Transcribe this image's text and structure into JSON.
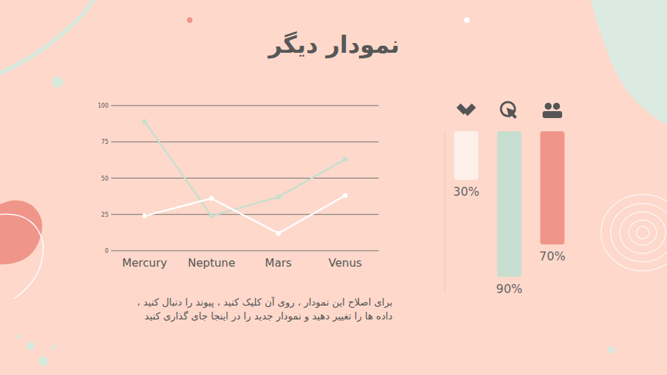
{
  "title": "نمودار دیگر",
  "caption": [
    "برای اصلاح این نمودار ، روی آن کلیک کنید ، پیوند را دنبال کنید ،",
    "داده ها را تغییر دهید و نمودار جدید را در اینجا جای گذاری کنید"
  ],
  "chart_data": [
    {
      "type": "line",
      "categories": [
        "Mercury",
        "Neptune",
        "Mars",
        "Venus"
      ],
      "series": [
        {
          "color": "#c5dfcf",
          "values": [
            89,
            24,
            37,
            63
          ],
          "marker": "circle"
        },
        {
          "color": "#ffffff",
          "values": [
            24,
            36,
            12,
            38
          ],
          "marker": "circle"
        }
      ],
      "ylim": [
        0,
        100
      ],
      "yticks": [
        0,
        25,
        50,
        75,
        100
      ],
      "grid": true
    },
    {
      "type": "bar",
      "categories": [
        null,
        null,
        null
      ],
      "values": [
        30,
        90,
        70
      ],
      "value_labels": [
        "30%",
        "90%",
        "70%"
      ],
      "colors": [
        "#fdf0eb",
        "#c6dfd0",
        "#f0958a"
      ],
      "ylim": [
        0,
        100
      ],
      "data_labels": true,
      "tick_labels": false
    }
  ]
}
